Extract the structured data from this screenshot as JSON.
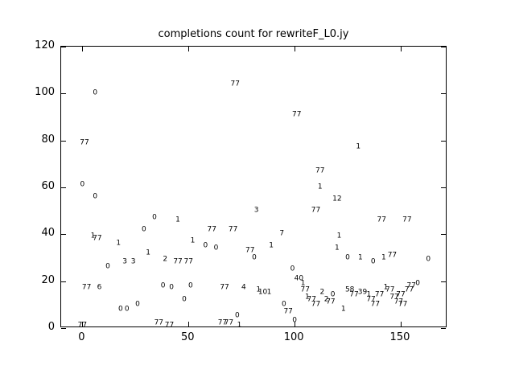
{
  "title": "completions count for rewriteF_L0.jy",
  "colors": {
    "foreground": "#000000",
    "background": "#ffffff"
  },
  "chart_data": {
    "type": "scatter",
    "title": "completions count for rewriteF_L0.jy",
    "xlabel": "",
    "ylabel": "",
    "xlim": [
      -10,
      172
    ],
    "ylim": [
      0,
      120
    ],
    "xticks": [
      "0",
      "50",
      "100",
      "150"
    ],
    "yticks": [
      "0",
      "20",
      "40",
      "60",
      "80",
      "100",
      "120"
    ],
    "grid": false,
    "legend": "none",
    "marker": "text-label",
    "points": [
      {
        "x": 0,
        "y": 1,
        "label": "77"
      },
      {
        "x": 0,
        "y": 61,
        "label": "0"
      },
      {
        "x": 1,
        "y": 79,
        "label": "77"
      },
      {
        "x": 2,
        "y": 17,
        "label": "77"
      },
      {
        "x": 5,
        "y": 39,
        "label": "1"
      },
      {
        "x": 7,
        "y": 38,
        "label": "77"
      },
      {
        "x": 6,
        "y": 100,
        "label": "0"
      },
      {
        "x": 6,
        "y": 56,
        "label": "0"
      },
      {
        "x": 8,
        "y": 17,
        "label": "6"
      },
      {
        "x": 12,
        "y": 26,
        "label": "0"
      },
      {
        "x": 17,
        "y": 36,
        "label": "1"
      },
      {
        "x": 18,
        "y": 8,
        "label": "0"
      },
      {
        "x": 21,
        "y": 8,
        "label": "0"
      },
      {
        "x": 20,
        "y": 28,
        "label": "3"
      },
      {
        "x": 24,
        "y": 28,
        "label": "3"
      },
      {
        "x": 26,
        "y": 10,
        "label": "0"
      },
      {
        "x": 29,
        "y": 42,
        "label": "0"
      },
      {
        "x": 31,
        "y": 32,
        "label": "1"
      },
      {
        "x": 34,
        "y": 47,
        "label": "0"
      },
      {
        "x": 36,
        "y": 2,
        "label": "77"
      },
      {
        "x": 38,
        "y": 18,
        "label": "0"
      },
      {
        "x": 39,
        "y": 29,
        "label": "2"
      },
      {
        "x": 41,
        "y": 1,
        "label": "77"
      },
      {
        "x": 42,
        "y": 17,
        "label": "0"
      },
      {
        "x": 45,
        "y": 46,
        "label": "1"
      },
      {
        "x": 45,
        "y": 28,
        "label": "77"
      },
      {
        "x": 50,
        "y": 28,
        "label": "77"
      },
      {
        "x": 48,
        "y": 12,
        "label": "0"
      },
      {
        "x": 51,
        "y": 18,
        "label": "0"
      },
      {
        "x": 52,
        "y": 37,
        "label": "1"
      },
      {
        "x": 58,
        "y": 35,
        "label": "0"
      },
      {
        "x": 61,
        "y": 42,
        "label": "77"
      },
      {
        "x": 63,
        "y": 34,
        "label": "0"
      },
      {
        "x": 66,
        "y": 2,
        "label": "77"
      },
      {
        "x": 69,
        "y": 2,
        "label": "77"
      },
      {
        "x": 67,
        "y": 17,
        "label": "77"
      },
      {
        "x": 71,
        "y": 42,
        "label": "77"
      },
      {
        "x": 72,
        "y": 104,
        "label": "77"
      },
      {
        "x": 73,
        "y": 5,
        "label": "0"
      },
      {
        "x": 74,
        "y": 1,
        "label": "1"
      },
      {
        "x": 76,
        "y": 17,
        "label": "4"
      },
      {
        "x": 79,
        "y": 33,
        "label": "77"
      },
      {
        "x": 81,
        "y": 30,
        "label": "0"
      },
      {
        "x": 82,
        "y": 50,
        "label": "3"
      },
      {
        "x": 83,
        "y": 16,
        "label": "1"
      },
      {
        "x": 85,
        "y": 15,
        "label": "10"
      },
      {
        "x": 88,
        "y": 15,
        "label": "1"
      },
      {
        "x": 89,
        "y": 35,
        "label": "1"
      },
      {
        "x": 94,
        "y": 40,
        "label": "7"
      },
      {
        "x": 95,
        "y": 10,
        "label": "0"
      },
      {
        "x": 97,
        "y": 7,
        "label": "77"
      },
      {
        "x": 99,
        "y": 25,
        "label": "0"
      },
      {
        "x": 100,
        "y": 3,
        "label": "0"
      },
      {
        "x": 101,
        "y": 91,
        "label": "77"
      },
      {
        "x": 102,
        "y": 21,
        "label": "40"
      },
      {
        "x": 104,
        "y": 19,
        "label": "1"
      },
      {
        "x": 105,
        "y": 16,
        "label": "77"
      },
      {
        "x": 106,
        "y": 13,
        "label": "1"
      },
      {
        "x": 108,
        "y": 12,
        "label": "77"
      },
      {
        "x": 110,
        "y": 50,
        "label": "77"
      },
      {
        "x": 110,
        "y": 10,
        "label": "77"
      },
      {
        "x": 112,
        "y": 67,
        "label": "77"
      },
      {
        "x": 112,
        "y": 60,
        "label": "1"
      },
      {
        "x": 113,
        "y": 15,
        "label": "2"
      },
      {
        "x": 115,
        "y": 12,
        "label": "2"
      },
      {
        "x": 117,
        "y": 11,
        "label": "77"
      },
      {
        "x": 118,
        "y": 14,
        "label": "0"
      },
      {
        "x": 120,
        "y": 55,
        "label": "12"
      },
      {
        "x": 120,
        "y": 34,
        "label": "1"
      },
      {
        "x": 121,
        "y": 39,
        "label": "1"
      },
      {
        "x": 123,
        "y": 8,
        "label": "1"
      },
      {
        "x": 125,
        "y": 30,
        "label": "0"
      },
      {
        "x": 126,
        "y": 16,
        "label": "58"
      },
      {
        "x": 128,
        "y": 14,
        "label": "77"
      },
      {
        "x": 130,
        "y": 77,
        "label": "1"
      },
      {
        "x": 131,
        "y": 30,
        "label": "1"
      },
      {
        "x": 132,
        "y": 15,
        "label": "39"
      },
      {
        "x": 135,
        "y": 14,
        "label": "1"
      },
      {
        "x": 136,
        "y": 12,
        "label": "77"
      },
      {
        "x": 137,
        "y": 28,
        "label": "0"
      },
      {
        "x": 138,
        "y": 10,
        "label": "77"
      },
      {
        "x": 140,
        "y": 14,
        "label": "77"
      },
      {
        "x": 141,
        "y": 46,
        "label": "77"
      },
      {
        "x": 142,
        "y": 30,
        "label": "1"
      },
      {
        "x": 143,
        "y": 17,
        "label": "1"
      },
      {
        "x": 145,
        "y": 16,
        "label": "77"
      },
      {
        "x": 146,
        "y": 31,
        "label": "77"
      },
      {
        "x": 147,
        "y": 13,
        "label": "77"
      },
      {
        "x": 149,
        "y": 11,
        "label": "77"
      },
      {
        "x": 150,
        "y": 14,
        "label": "77"
      },
      {
        "x": 151,
        "y": 10,
        "label": "77"
      },
      {
        "x": 153,
        "y": 46,
        "label": "77"
      },
      {
        "x": 154,
        "y": 16,
        "label": "77"
      },
      {
        "x": 155,
        "y": 18,
        "label": "77"
      },
      {
        "x": 158,
        "y": 19,
        "label": "0"
      },
      {
        "x": 163,
        "y": 29,
        "label": "0"
      }
    ]
  }
}
